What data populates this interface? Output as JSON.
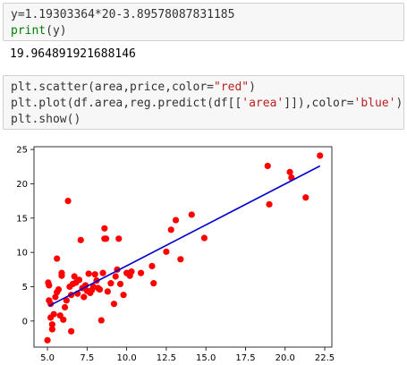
{
  "cell1": {
    "line1": "y=1.19303364*20-3.89578087831185",
    "line2_fn": "print",
    "line2_rest": "(y)"
  },
  "output1": "19.964891921688146",
  "cell2": {
    "line1_a": "plt.scatter(area,price,color=",
    "line1_str": "\"red\"",
    "line1_b": ")",
    "line2_a": "plt.plot(df.area,reg.predict(df[[",
    "line2_str1": "'area'",
    "line2_b": "]]),color=",
    "line2_str2": "'blue'",
    "line2_c": ")",
    "line3": "plt.show()"
  },
  "colors": {
    "scatter": "#ff0000",
    "line": "#0000cc",
    "cell_bg": "#f7f7f7",
    "string": "#ba2121",
    "builtin": "#008000"
  },
  "chart_data": {
    "type": "scatter",
    "xlim": [
      4.15,
      22.95
    ],
    "ylim": [
      -3.8,
      25.4
    ],
    "xticks": [
      5.0,
      7.5,
      10.0,
      12.5,
      15.0,
      17.5,
      20.0,
      22.5
    ],
    "xtick_labels": [
      "5.0",
      "7.5",
      "10.0",
      "12.5",
      "15.0",
      "17.5",
      "20.0",
      "22.5"
    ],
    "yticks": [
      0,
      5,
      10,
      15,
      20,
      25
    ],
    "ytick_labels": [
      "0",
      "5",
      "10",
      "15",
      "20",
      "25"
    ],
    "grid": false,
    "line": {
      "x": [
        5.1,
        22.2
      ],
      "y": [
        2.2,
        22.6
      ]
    },
    "points": [
      [
        5.0,
        -2.8
      ],
      [
        5.05,
        5.6
      ],
      [
        5.1,
        5.2
      ],
      [
        5.1,
        3.0
      ],
      [
        5.2,
        2.5
      ],
      [
        5.2,
        0.5
      ],
      [
        5.3,
        -0.5
      ],
      [
        5.3,
        -1.2
      ],
      [
        5.4,
        1.0
      ],
      [
        5.5,
        3.5
      ],
      [
        5.6,
        4.2
      ],
      [
        5.6,
        9.1
      ],
      [
        5.7,
        4.6
      ],
      [
        5.8,
        0.8
      ],
      [
        5.9,
        7.0
      ],
      [
        5.9,
        6.6
      ],
      [
        6.0,
        0.2
      ],
      [
        6.1,
        2.0
      ],
      [
        6.2,
        3.0
      ],
      [
        6.3,
        17.5
      ],
      [
        6.4,
        5.0
      ],
      [
        6.5,
        -1.5
      ],
      [
        6.5,
        3.8
      ],
      [
        6.6,
        5.4
      ],
      [
        6.7,
        6.5
      ],
      [
        6.8,
        5.6
      ],
      [
        6.9,
        4.0
      ],
      [
        7.0,
        6.0
      ],
      [
        7.1,
        11.8
      ],
      [
        7.2,
        4.8
      ],
      [
        7.3,
        3.5
      ],
      [
        7.4,
        5.2
      ],
      [
        7.5,
        4.4
      ],
      [
        7.6,
        6.9
      ],
      [
        7.7,
        4.1
      ],
      [
        7.8,
        4.5
      ],
      [
        7.9,
        5.0
      ],
      [
        8.0,
        6.8
      ],
      [
        8.1,
        5.9
      ],
      [
        8.2,
        4.8
      ],
      [
        8.3,
        4.6
      ],
      [
        8.4,
        0.1
      ],
      [
        8.5,
        7.0
      ],
      [
        8.6,
        12.0
      ],
      [
        8.6,
        13.5
      ],
      [
        8.7,
        12.0
      ],
      [
        8.8,
        4.3
      ],
      [
        9.0,
        5.5
      ],
      [
        9.2,
        2.5
      ],
      [
        9.3,
        6.5
      ],
      [
        9.4,
        7.5
      ],
      [
        9.5,
        12.0
      ],
      [
        9.6,
        5.4
      ],
      [
        9.8,
        3.8
      ],
      [
        10.0,
        7.0
      ],
      [
        10.2,
        6.6
      ],
      [
        10.3,
        7.2
      ],
      [
        10.9,
        7.0
      ],
      [
        11.6,
        8.0
      ],
      [
        11.7,
        5.5
      ],
      [
        12.5,
        10.1
      ],
      [
        12.8,
        13.3
      ],
      [
        13.1,
        14.7
      ],
      [
        13.4,
        9.0
      ],
      [
        14.1,
        15.5
      ],
      [
        14.9,
        12.1
      ],
      [
        18.9,
        22.6
      ],
      [
        19.0,
        17.0
      ],
      [
        20.3,
        21.7
      ],
      [
        20.4,
        20.9
      ],
      [
        21.3,
        18.0
      ],
      [
        22.2,
        24.1
      ]
    ]
  }
}
